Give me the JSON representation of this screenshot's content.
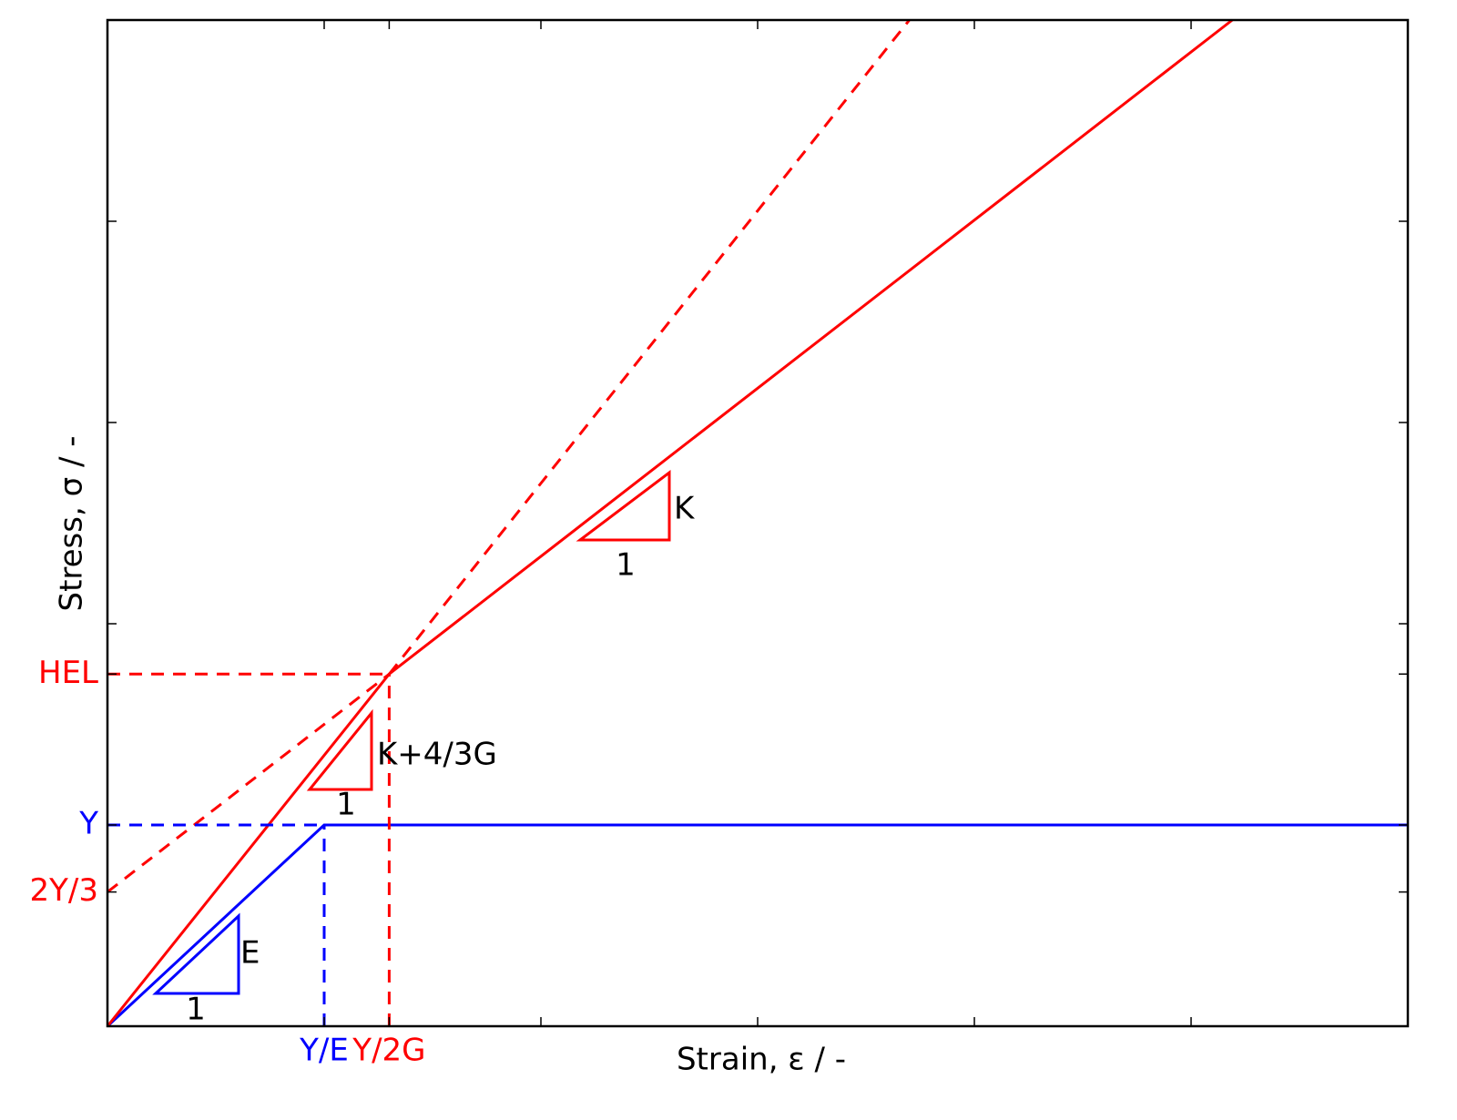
{
  "chart_data": {
    "type": "line",
    "xlabel": "Strain, ε / -",
    "ylabel": "Stress, σ / -",
    "xlim": [
      0,
      6
    ],
    "ylim": [
      0,
      5
    ],
    "xticks": [
      {
        "value": 1,
        "label": "Y/E",
        "color": "#0000ff"
      },
      {
        "value": 1.3,
        "label": "Y/2G",
        "color": "#ff0000"
      },
      {
        "value": 2,
        "label": null
      },
      {
        "value": 3,
        "label": null
      },
      {
        "value": 4,
        "label": null
      },
      {
        "value": 5,
        "label": null
      }
    ],
    "yticks": [
      {
        "value": 0.667,
        "label": "2Y/3",
        "color": "#ff0000"
      },
      {
        "value": 1,
        "label": "Y",
        "color": "#0000ff"
      },
      {
        "value": 1.75,
        "label": "HEL",
        "color": "#ff0000"
      },
      {
        "value": 2,
        "label": null
      },
      {
        "value": 3,
        "label": null
      },
      {
        "value": 4,
        "label": null
      }
    ],
    "series": [
      {
        "color": "#0000ff",
        "x": [
          0,
          1,
          6
        ],
        "values": [
          0,
          1,
          1
        ]
      },
      {
        "color": "#ff0000",
        "x": [
          0,
          1.3,
          5.19
        ],
        "values": [
          0,
          1.75,
          5
        ]
      },
      {
        "color": "#ff0000",
        "dashed": true,
        "x": [
          0,
          1.3
        ],
        "values": [
          0.667,
          1.75
        ]
      },
      {
        "color": "#ff0000",
        "dashed": true,
        "x": [
          1.3,
          3.7
        ],
        "values": [
          1.75,
          5
        ]
      },
      {
        "color": "#ff0000",
        "dashed": true,
        "x": [
          0,
          1.3
        ],
        "values": [
          1.75,
          1.75
        ]
      },
      {
        "color": "#ff0000",
        "dashed": true,
        "x": [
          1.3,
          1.3
        ],
        "values": [
          0,
          1.75
        ]
      },
      {
        "color": "#0000ff",
        "dashed": true,
        "x": [
          0,
          1
        ],
        "values": [
          1,
          1
        ]
      },
      {
        "color": "#0000ff",
        "dashed": true,
        "x": [
          1,
          1
        ],
        "values": [
          0,
          1
        ]
      }
    ],
    "annotations": [
      {
        "text": "E",
        "color": "#0000ff"
      },
      {
        "text": "1",
        "color": "#0000ff"
      },
      {
        "text": "K+4/3G",
        "color": "#ff0000"
      },
      {
        "text": "1",
        "color": "#ff0000"
      },
      {
        "text": "K",
        "color": "#ff0000"
      },
      {
        "text": "1",
        "color": "#ff0000"
      }
    ]
  }
}
